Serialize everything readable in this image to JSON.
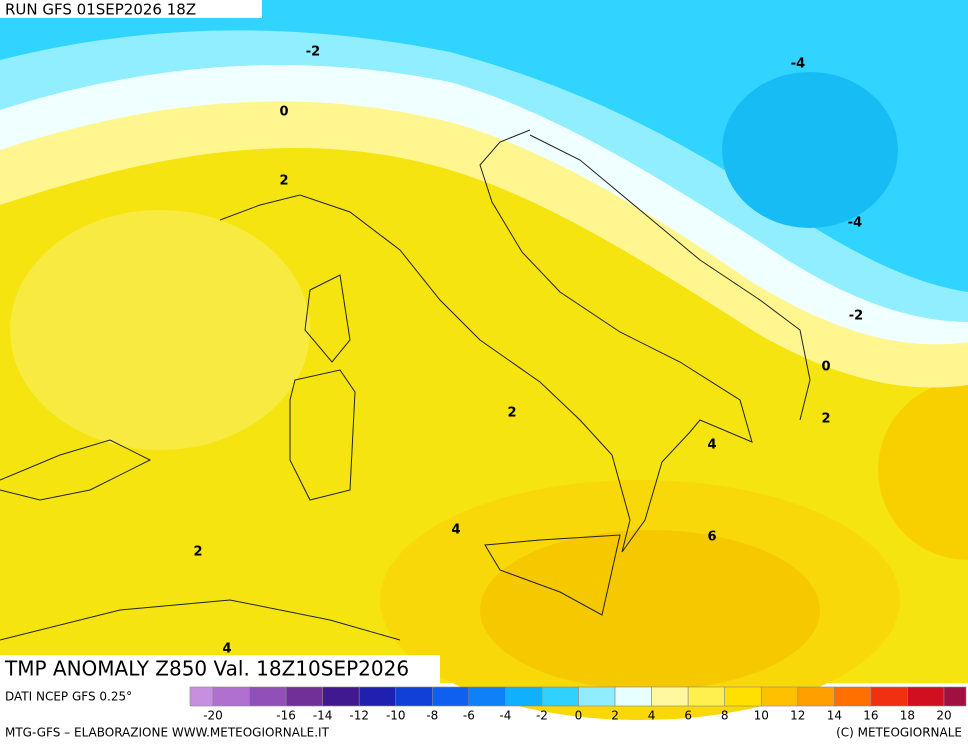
{
  "header": {
    "run": "RUN GFS 01SEP2026 18Z"
  },
  "contour_labels": [
    "-2",
    "0",
    "2",
    "-4",
    "-4",
    "-2",
    "0",
    "2",
    "2",
    "4",
    "4",
    "6",
    "2",
    "4"
  ],
  "title": "TMP ANOMALY Z850 Val. 18Z10SEP2026",
  "source": "DATI NCEP GFS 0.25°",
  "colorbar": {
    "ticks": [
      -20,
      -16,
      -14,
      -12,
      -10,
      -8,
      -6,
      -4,
      -2,
      0,
      2,
      4,
      6,
      8,
      10,
      12,
      14,
      16,
      18,
      20
    ],
    "colors": [
      "#c88ee0",
      "#b070d0",
      "#9050b8",
      "#703098",
      "#401890",
      "#2020b0",
      "#1040d8",
      "#1060f0",
      "#1080f8",
      "#10b0ff",
      "#30d0ff",
      "#90ecff",
      "#e8ffff",
      "#fff8a0",
      "#fff050",
      "#ffe000",
      "#ffc000",
      "#ffa000",
      "#ff7000",
      "#f03010",
      "#d01020",
      "#a01040"
    ]
  },
  "footer": {
    "left": "MTG-GFS – ELABORAZIONE WWW.METEOGIORNALE.IT",
    "right": "(C) METEOGIORNALE"
  }
}
